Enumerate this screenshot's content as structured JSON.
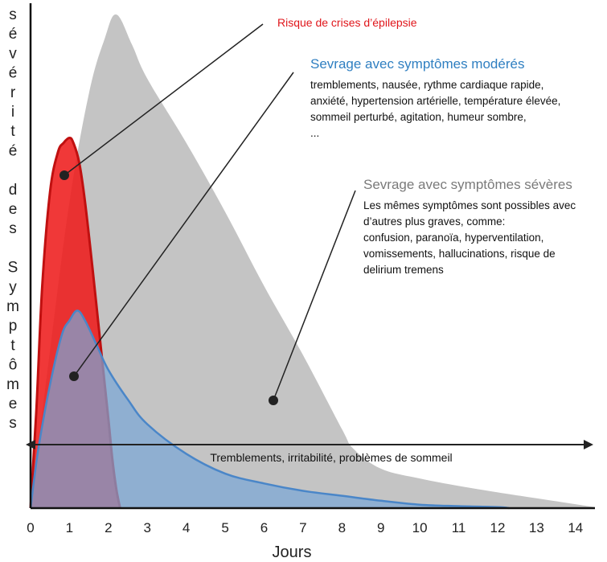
{
  "chart_data": {
    "type": "area",
    "xlabel": "Jours",
    "ylabel": "sévérité des Symptômes",
    "xlim": [
      0,
      14.5
    ],
    "ylim": [
      0,
      100
    ],
    "x_ticks": [
      "0",
      "1",
      "2",
      "3",
      "4",
      "5",
      "6",
      "7",
      "8",
      "9",
      "10",
      "11",
      "12",
      "13",
      "14"
    ],
    "grid": false,
    "series": [
      {
        "name": "Sevrage avec symptômes sévères",
        "color": "#c4c4c4",
        "x": [
          0,
          0.5,
          1,
          1.5,
          1.9,
          2.2,
          2.6,
          3,
          4,
          5,
          6,
          7,
          8,
          8.3,
          9,
          10,
          11,
          12,
          13,
          14,
          14.5
        ],
        "y": [
          0,
          32,
          62,
          84,
          95,
          100,
          94,
          87,
          74,
          60,
          45,
          31,
          16,
          12,
          8,
          6,
          4.5,
          3.2,
          2,
          0.8,
          0.2
        ]
      },
      {
        "name": "Risque de crises d’épilepsie",
        "color": "#ee1c1c",
        "x": [
          0,
          0.15,
          0.3,
          0.5,
          0.7,
          0.85,
          1,
          1.1,
          1.25,
          1.4,
          1.6,
          1.8,
          2.0,
          2.1,
          2.2,
          2.3
        ],
        "y": [
          0,
          20,
          45,
          64,
          72,
          74,
          75,
          74,
          70,
          62,
          48,
          33,
          18,
          10,
          4,
          0
        ]
      },
      {
        "name": "Sevrage avec symptômes modérés",
        "color": "#7aa6d6",
        "x": [
          0,
          0.2,
          0.5,
          0.8,
          1.0,
          1.2,
          1.4,
          1.7,
          2,
          2.5,
          3,
          4,
          5,
          6,
          7,
          8,
          9,
          10,
          11,
          12,
          12.3
        ],
        "y": [
          0,
          12,
          25,
          35,
          38,
          40,
          38,
          33,
          28,
          22,
          17,
          11,
          7,
          5,
          3.5,
          2.5,
          1.5,
          0.7,
          0.4,
          0.2,
          0
        ]
      }
    ],
    "annotations": {
      "seizure_title": "Risque de crises d’épilepsie",
      "moderate_title": "Sevrage avec symptômes modérés",
      "moderate_lines": [
        "tremblements, nausée, rythme cardiaque rapide,",
        "anxiété, hypertension artérielle, température élevée,",
        "sommeil perturbé, agitation, humeur sombre,",
        "..."
      ],
      "severe_title": "Sevrage avec symptômes sévères",
      "severe_lines": [
        "Les mêmes symptômes sont possibles avec",
        "d’autres plus graves, comme:",
        "confusion, paranoïa, hyperventilation,",
        "vomissements, hallucinations, risque de",
        "delirium tremens"
      ],
      "baseline": "Tremblements, irritabilité, problèmes de sommeil"
    }
  }
}
